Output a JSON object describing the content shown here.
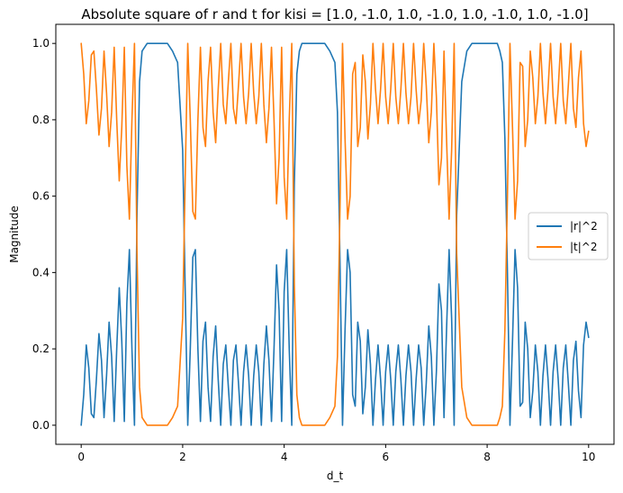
{
  "chart_data": {
    "type": "line",
    "title": "Absolute square of r and t for kisi = [1.0, -1.0, 1.0, -1.0, 1.0, -1.0, 1.0, -1.0]",
    "xlabel": "d_t",
    "ylabel": "Magnitude",
    "xlim": [
      -0.5,
      10.5
    ],
    "ylim": [
      -0.05,
      1.05
    ],
    "xticks": [
      0,
      2,
      4,
      6,
      8,
      10
    ],
    "xtick_labels": [
      "0",
      "2",
      "4",
      "6",
      "8",
      "10"
    ],
    "yticks": [
      0.0,
      0.2,
      0.4,
      0.6,
      0.8,
      1.0
    ],
    "ytick_labels": [
      "0.0",
      "0.2",
      "0.4",
      "0.6",
      "0.8",
      "1.0"
    ],
    "grid": false,
    "legend_position": "center-right",
    "series": [
      {
        "name": "|r|^2",
        "color": "#1f77b4",
        "x": [
          0.0,
          0.05,
          0.1,
          0.15,
          0.2,
          0.25,
          0.3,
          0.35,
          0.4,
          0.45,
          0.5,
          0.55,
          0.6,
          0.65,
          0.7,
          0.75,
          0.8,
          0.85,
          0.9,
          0.95,
          1.0,
          1.05,
          1.1,
          1.15,
          1.2,
          1.3,
          1.4,
          1.5,
          1.6,
          1.7,
          1.8,
          1.9,
          2.0,
          2.05,
          2.1,
          2.15,
          2.2,
          2.25,
          2.3,
          2.35,
          2.4,
          2.45,
          2.5,
          2.55,
          2.6,
          2.65,
          2.7,
          2.75,
          2.8,
          2.85,
          2.9,
          2.95,
          3.0,
          3.05,
          3.1,
          3.15,
          3.2,
          3.25,
          3.3,
          3.35,
          3.4,
          3.45,
          3.5,
          3.55,
          3.6,
          3.65,
          3.7,
          3.75,
          3.8,
          3.85,
          3.9,
          3.95,
          4.0,
          4.05,
          4.1,
          4.15,
          4.2,
          4.25,
          4.3,
          4.35,
          4.4,
          4.5,
          4.6,
          4.7,
          4.8,
          4.9,
          5.0,
          5.05,
          5.1,
          5.15,
          5.2,
          5.25,
          5.3,
          5.35,
          5.4,
          5.45,
          5.5,
          5.55,
          5.6,
          5.65,
          5.7,
          5.75,
          5.8,
          5.85,
          5.9,
          5.95,
          6.0,
          6.05,
          6.1,
          6.15,
          6.2,
          6.25,
          6.3,
          6.35,
          6.4,
          6.45,
          6.5,
          6.55,
          6.6,
          6.65,
          6.7,
          6.75,
          6.8,
          6.85,
          6.9,
          6.95,
          7.0,
          7.05,
          7.1,
          7.15,
          7.2,
          7.25,
          7.3,
          7.35,
          7.4,
          7.5,
          7.6,
          7.7,
          7.8,
          7.9,
          8.0,
          8.1,
          8.2,
          8.25,
          8.3,
          8.35,
          8.4,
          8.45,
          8.5,
          8.55,
          8.6,
          8.65,
          8.7,
          8.75,
          8.8,
          8.85,
          8.9,
          8.95,
          9.0,
          9.05,
          9.1,
          9.15,
          9.2,
          9.25,
          9.3,
          9.35,
          9.4,
          9.45,
          9.5,
          9.55,
          9.6,
          9.65,
          9.7,
          9.75,
          9.8,
          9.85,
          9.9,
          9.95,
          10.0
        ],
        "y": [
          0.0,
          0.08,
          0.21,
          0.15,
          0.03,
          0.02,
          0.12,
          0.24,
          0.17,
          0.02,
          0.13,
          0.27,
          0.18,
          0.01,
          0.2,
          0.36,
          0.22,
          0.01,
          0.32,
          0.46,
          0.2,
          0.0,
          0.55,
          0.9,
          0.98,
          1.0,
          1.0,
          1.0,
          1.0,
          1.0,
          0.98,
          0.95,
          0.72,
          0.35,
          0.0,
          0.2,
          0.44,
          0.46,
          0.2,
          0.01,
          0.22,
          0.27,
          0.1,
          0.01,
          0.18,
          0.26,
          0.12,
          0.0,
          0.16,
          0.21,
          0.1,
          0.0,
          0.17,
          0.21,
          0.11,
          0.0,
          0.14,
          0.21,
          0.13,
          0.0,
          0.13,
          0.21,
          0.14,
          0.0,
          0.16,
          0.26,
          0.17,
          0.01,
          0.2,
          0.42,
          0.3,
          0.01,
          0.35,
          0.46,
          0.2,
          0.0,
          0.63,
          0.92,
          0.98,
          1.0,
          1.0,
          1.0,
          1.0,
          1.0,
          1.0,
          0.98,
          0.95,
          0.82,
          0.43,
          0.0,
          0.25,
          0.46,
          0.4,
          0.08,
          0.05,
          0.27,
          0.22,
          0.03,
          0.1,
          0.25,
          0.16,
          0.0,
          0.12,
          0.21,
          0.12,
          0.0,
          0.14,
          0.21,
          0.12,
          0.0,
          0.14,
          0.21,
          0.12,
          0.0,
          0.13,
          0.21,
          0.14,
          0.0,
          0.12,
          0.21,
          0.15,
          0.0,
          0.11,
          0.26,
          0.18,
          0.0,
          0.14,
          0.37,
          0.3,
          0.02,
          0.25,
          0.46,
          0.28,
          0.0,
          0.55,
          0.9,
          0.98,
          1.0,
          1.0,
          1.0,
          1.0,
          1.0,
          1.0,
          0.98,
          0.95,
          0.75,
          0.4,
          0.0,
          0.22,
          0.46,
          0.36,
          0.05,
          0.06,
          0.27,
          0.2,
          0.02,
          0.09,
          0.21,
          0.14,
          0.0,
          0.13,
          0.21,
          0.12,
          0.0,
          0.14,
          0.21,
          0.12,
          0.0,
          0.15,
          0.21,
          0.11,
          0.0,
          0.17,
          0.22,
          0.09,
          0.02,
          0.21,
          0.27,
          0.23
        ]
      },
      {
        "name": "|t|^2",
        "color": "#ff7f0e",
        "x": [
          0.0,
          0.05,
          0.1,
          0.15,
          0.2,
          0.25,
          0.3,
          0.35,
          0.4,
          0.45,
          0.5,
          0.55,
          0.6,
          0.65,
          0.7,
          0.75,
          0.8,
          0.85,
          0.9,
          0.95,
          1.0,
          1.05,
          1.1,
          1.15,
          1.2,
          1.3,
          1.4,
          1.5,
          1.6,
          1.7,
          1.8,
          1.9,
          2.0,
          2.05,
          2.1,
          2.15,
          2.2,
          2.25,
          2.3,
          2.35,
          2.4,
          2.45,
          2.5,
          2.55,
          2.6,
          2.65,
          2.7,
          2.75,
          2.8,
          2.85,
          2.9,
          2.95,
          3.0,
          3.05,
          3.1,
          3.15,
          3.2,
          3.25,
          3.3,
          3.35,
          3.4,
          3.45,
          3.5,
          3.55,
          3.6,
          3.65,
          3.7,
          3.75,
          3.8,
          3.85,
          3.9,
          3.95,
          4.0,
          4.05,
          4.1,
          4.15,
          4.2,
          4.25,
          4.3,
          4.35,
          4.4,
          4.5,
          4.6,
          4.7,
          4.8,
          4.9,
          5.0,
          5.05,
          5.1,
          5.15,
          5.2,
          5.25,
          5.3,
          5.35,
          5.4,
          5.45,
          5.5,
          5.55,
          5.6,
          5.65,
          5.7,
          5.75,
          5.8,
          5.85,
          5.9,
          5.95,
          6.0,
          6.05,
          6.1,
          6.15,
          6.2,
          6.25,
          6.3,
          6.35,
          6.4,
          6.45,
          6.5,
          6.55,
          6.6,
          6.65,
          6.7,
          6.75,
          6.8,
          6.85,
          6.9,
          6.95,
          7.0,
          7.05,
          7.1,
          7.15,
          7.2,
          7.25,
          7.3,
          7.35,
          7.4,
          7.5,
          7.6,
          7.7,
          7.8,
          7.9,
          8.0,
          8.1,
          8.2,
          8.25,
          8.3,
          8.35,
          8.4,
          8.45,
          8.5,
          8.55,
          8.6,
          8.65,
          8.7,
          8.75,
          8.8,
          8.85,
          8.9,
          8.95,
          9.0,
          9.05,
          9.1,
          9.15,
          9.2,
          9.25,
          9.3,
          9.35,
          9.4,
          9.45,
          9.5,
          9.55,
          9.6,
          9.65,
          9.7,
          9.75,
          9.8,
          9.85,
          9.9,
          9.95,
          10.0
        ],
        "y": [
          1.0,
          0.92,
          0.79,
          0.85,
          0.97,
          0.98,
          0.88,
          0.76,
          0.83,
          0.98,
          0.87,
          0.73,
          0.82,
          0.99,
          0.8,
          0.64,
          0.78,
          0.99,
          0.68,
          0.54,
          0.8,
          1.0,
          0.45,
          0.1,
          0.02,
          0.0,
          0.0,
          0.0,
          0.0,
          0.0,
          0.02,
          0.05,
          0.28,
          0.65,
          1.0,
          0.8,
          0.56,
          0.54,
          0.8,
          0.99,
          0.78,
          0.73,
          0.9,
          0.99,
          0.82,
          0.74,
          0.88,
          1.0,
          0.84,
          0.79,
          0.9,
          1.0,
          0.83,
          0.79,
          0.89,
          1.0,
          0.86,
          0.79,
          0.87,
          1.0,
          0.87,
          0.79,
          0.86,
          1.0,
          0.84,
          0.74,
          0.83,
          0.99,
          0.8,
          0.58,
          0.7,
          0.99,
          0.65,
          0.54,
          0.8,
          1.0,
          0.37,
          0.08,
          0.02,
          0.0,
          0.0,
          0.0,
          0.0,
          0.0,
          0.0,
          0.02,
          0.05,
          0.18,
          0.57,
          1.0,
          0.75,
          0.54,
          0.6,
          0.92,
          0.95,
          0.73,
          0.78,
          0.97,
          0.9,
          0.75,
          0.84,
          1.0,
          0.88,
          0.79,
          0.88,
          1.0,
          0.86,
          0.79,
          0.88,
          1.0,
          0.86,
          0.79,
          0.88,
          1.0,
          0.87,
          0.79,
          0.86,
          1.0,
          0.88,
          0.79,
          0.85,
          1.0,
          0.89,
          0.74,
          0.82,
          1.0,
          0.86,
          0.63,
          0.7,
          0.98,
          0.75,
          0.54,
          0.72,
          1.0,
          0.45,
          0.1,
          0.02,
          0.0,
          0.0,
          0.0,
          0.0,
          0.0,
          0.0,
          0.02,
          0.05,
          0.25,
          0.6,
          1.0,
          0.78,
          0.54,
          0.64,
          0.95,
          0.94,
          0.73,
          0.8,
          0.98,
          0.91,
          0.79,
          0.86,
          1.0,
          0.87,
          0.79,
          0.88,
          1.0,
          0.86,
          0.79,
          0.88,
          1.0,
          0.85,
          0.79,
          0.89,
          1.0,
          0.83,
          0.78,
          0.91,
          0.98,
          0.79,
          0.73,
          0.77
        ]
      }
    ]
  }
}
